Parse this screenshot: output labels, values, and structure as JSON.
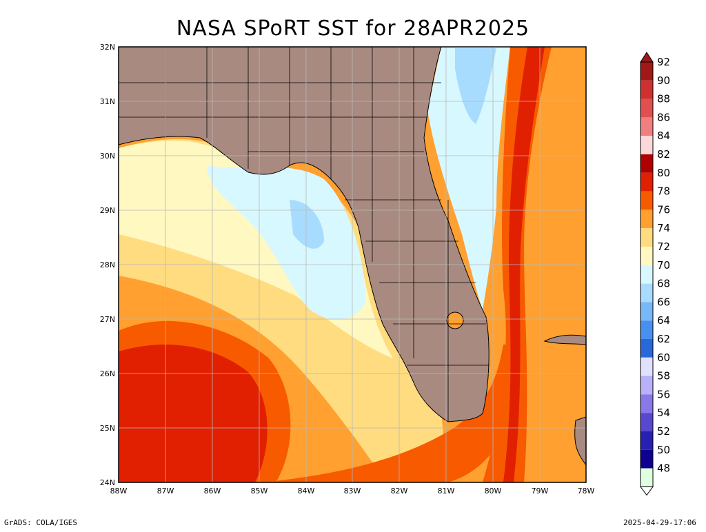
{
  "title": "NASA SPoRT SST for 28APR2025",
  "footer": {
    "credit": "GrADS: COLA/IGES",
    "timestamp": "2025-04-29-17:06"
  },
  "map": {
    "lat_labels": [
      "32N",
      "31N",
      "30N",
      "29N",
      "28N",
      "27N",
      "26N",
      "25N",
      "24N"
    ],
    "lon_labels": [
      "88W",
      "87W",
      "86W",
      "85W",
      "84W",
      "83W",
      "82W",
      "81W",
      "80W",
      "79W",
      "78W"
    ],
    "lat_range": [
      24,
      32
    ],
    "lon_range": [
      -88,
      -78
    ],
    "land_color": "#a88a80",
    "grid": true
  },
  "legend": {
    "levels": [
      {
        "label": "92",
        "color": "#a01818"
      },
      {
        "label": "90",
        "color": "#d03030"
      },
      {
        "label": "88",
        "color": "#e05050"
      },
      {
        "label": "86",
        "color": "#f08080"
      },
      {
        "label": "84",
        "color": "#fcd8d8"
      },
      {
        "label": "82",
        "color": "#b00000"
      },
      {
        "label": "80",
        "color": "#e02000"
      },
      {
        "label": "78",
        "color": "#f85a00"
      },
      {
        "label": "76",
        "color": "#ffa030"
      },
      {
        "label": "74",
        "color": "#ffdc80"
      },
      {
        "label": "72",
        "color": "#fff8c0"
      },
      {
        "label": "70",
        "color": "#d8f8ff"
      },
      {
        "label": "68",
        "color": "#a8dcff"
      },
      {
        "label": "66",
        "color": "#78b8f8"
      },
      {
        "label": "64",
        "color": "#4890f0"
      },
      {
        "label": "62",
        "color": "#2868d8"
      },
      {
        "label": "60",
        "color": "#e0e0ff"
      },
      {
        "label": "58",
        "color": "#b8b0f8"
      },
      {
        "label": "56",
        "color": "#8878e8"
      },
      {
        "label": "54",
        "color": "#5848d0"
      },
      {
        "label": "52",
        "color": "#2820b0"
      },
      {
        "label": "50",
        "color": "#100090"
      },
      {
        "label": "48",
        "color": "#e0ffe0"
      }
    ],
    "low_colors": [
      "#a8f0a8",
      "#70e070",
      "#38c838",
      "#10a810"
    ]
  }
}
